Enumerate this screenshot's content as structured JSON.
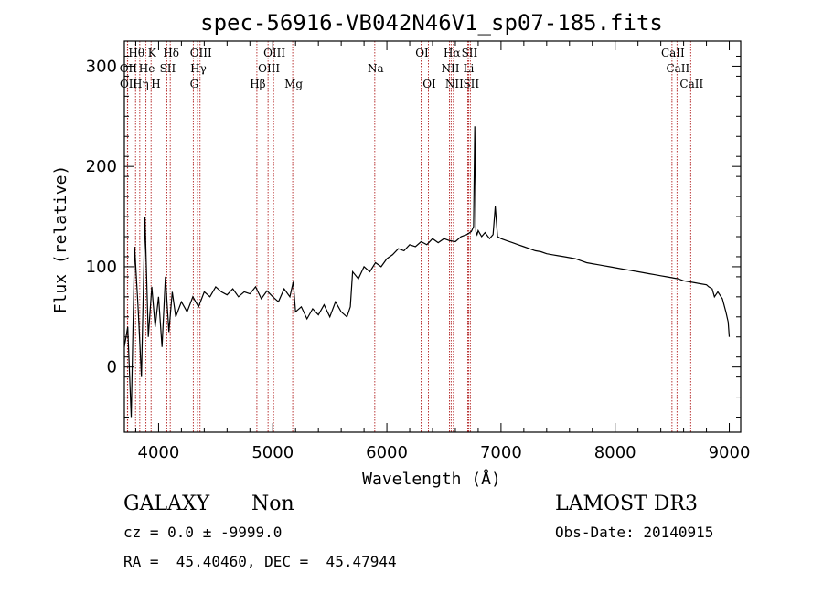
{
  "title": "spec-56916-VB042N46V1_sp07-185.fits",
  "footer": {
    "object_class": "GALAXY",
    "subclass": "Non",
    "survey": "LAMOST DR3",
    "redshift_line": "cz = 0.0 ± -9999.0",
    "obs_date": "Obs-Date: 20140915",
    "coords": "RA =  45.40460, DEC =  45.47944"
  },
  "colors": {
    "spectrum": "#000000",
    "line_marker": "#b22222",
    "axes": "#000000"
  },
  "chart_data": {
    "type": "line",
    "title": "spec-56916-VB042N46V1_sp07-185.fits",
    "xlabel": "Wavelength (Å)",
    "ylabel": "Flux (relative)",
    "xlim": [
      3700,
      9100
    ],
    "ylim": [
      -65,
      325
    ],
    "xticks": [
      4000,
      5000,
      6000,
      7000,
      8000,
      9000
    ],
    "yticks": [
      0,
      100,
      200,
      300
    ],
    "grid": false,
    "series": [
      {
        "x": [
          3700,
          3730,
          3760,
          3790,
          3820,
          3850,
          3880,
          3910,
          3940,
          3970,
          4000,
          4030,
          4060,
          4090,
          4120,
          4150,
          4200,
          4250,
          4300,
          4350,
          4400,
          4450,
          4500,
          4550,
          4600,
          4650,
          4700,
          4750,
          4800,
          4850,
          4900,
          4950,
          5000,
          5050,
          5100,
          5150,
          5180,
          5200,
          5250,
          5300,
          5350,
          5400,
          5450,
          5500,
          5550,
          5600,
          5650,
          5680,
          5700,
          5750,
          5800,
          5850,
          5900,
          5950,
          6000,
          6050,
          6100,
          6150,
          6200,
          6250,
          6300,
          6350,
          6400,
          6450,
          6500,
          6550,
          6600,
          6650,
          6700,
          6740,
          6760,
          6770,
          6780,
          6790,
          6800,
          6830,
          6860,
          6900,
          6930,
          6950,
          6970,
          7000,
          7050,
          7100,
          7150,
          7200,
          7250,
          7300,
          7350,
          7400,
          7450,
          7500,
          7550,
          7600,
          7650,
          7700,
          7750,
          7800,
          7850,
          7900,
          7950,
          8000,
          8050,
          8100,
          8150,
          8200,
          8250,
          8300,
          8350,
          8400,
          8450,
          8500,
          8550,
          8600,
          8650,
          8700,
          8750,
          8800,
          8820,
          8850,
          8870,
          8900,
          8940,
          8970,
          8990,
          9000
        ],
        "y": [
          20,
          40,
          -50,
          120,
          60,
          -10,
          150,
          30,
          80,
          40,
          70,
          20,
          90,
          35,
          75,
          50,
          65,
          55,
          70,
          60,
          75,
          70,
          80,
          75,
          72,
          78,
          70,
          75,
          73,
          80,
          68,
          76,
          70,
          65,
          78,
          70,
          85,
          55,
          60,
          48,
          58,
          52,
          62,
          50,
          65,
          55,
          50,
          60,
          95,
          88,
          100,
          95,
          104,
          100,
          108,
          112,
          118,
          116,
          122,
          120,
          125,
          122,
          128,
          124,
          128,
          126,
          125,
          130,
          132,
          135,
          140,
          240,
          135,
          132,
          136,
          130,
          134,
          128,
          132,
          160,
          130,
          128,
          126,
          124,
          122,
          120,
          118,
          116,
          115,
          113,
          112,
          111,
          110,
          109,
          108,
          106,
          104,
          103,
          102,
          101,
          100,
          99,
          98,
          97,
          96,
          95,
          94,
          93,
          92,
          91,
          90,
          89,
          88,
          86,
          85,
          84,
          83,
          82,
          80,
          78,
          70,
          75,
          68,
          55,
          45,
          30
        ]
      }
    ],
    "lines": [
      {
        "name": "OII",
        "x": 3727,
        "row": 2
      },
      {
        "name": "OII",
        "x": 3729,
        "row": 3
      },
      {
        "name": "Hθ",
        "x": 3798,
        "row": 1
      },
      {
        "name": "Hη",
        "x": 3835,
        "row": 3
      },
      {
        "name": "He",
        "x": 3889,
        "row": 2
      },
      {
        "name": "K",
        "x": 3934,
        "row": 1
      },
      {
        "name": "H",
        "x": 3968,
        "row": 3
      },
      {
        "name": "Hδ",
        "x": 4102,
        "row": 1
      },
      {
        "name": "SII",
        "x": 4072,
        "row": 2
      },
      {
        "name": "G",
        "x": 4304,
        "row": 3
      },
      {
        "name": "OIII",
        "x": 4363,
        "row": 1
      },
      {
        "name": "Hγ",
        "x": 4341,
        "row": 2
      },
      {
        "name": "Hβ",
        "x": 4861,
        "row": 3
      },
      {
        "name": "OIII",
        "x": 4959,
        "row": 2
      },
      {
        "name": "OIII",
        "x": 5007,
        "row": 1
      },
      {
        "name": "Mg",
        "x": 5175,
        "row": 3
      },
      {
        "name": "Na",
        "x": 5894,
        "row": 2
      },
      {
        "name": "OI",
        "x": 6300,
        "row": 1
      },
      {
        "name": "OI",
        "x": 6364,
        "row": 3
      },
      {
        "name": "NII",
        "x": 6548,
        "row": 2
      },
      {
        "name": "NII",
        "x": 6583,
        "row": 3
      },
      {
        "name": "Hα",
        "x": 6563,
        "row": 1
      },
      {
        "name": "SII",
        "x": 6716,
        "row": 1
      },
      {
        "name": "Li",
        "x": 6708,
        "row": 2
      },
      {
        "name": "SII",
        "x": 6731,
        "row": 3
      },
      {
        "name": "CaII",
        "x": 8498,
        "row": 1
      },
      {
        "name": "CaII",
        "x": 8542,
        "row": 2
      },
      {
        "name": "CaII",
        "x": 8662,
        "row": 3
      }
    ]
  }
}
